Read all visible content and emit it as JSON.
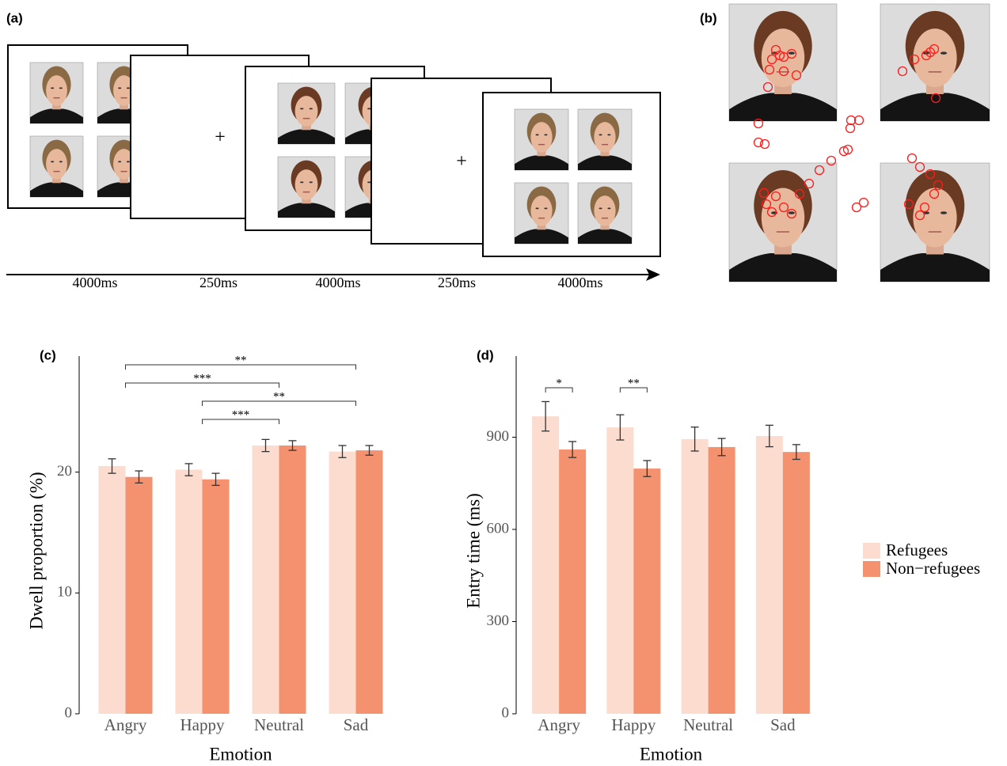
{
  "panel_a": {
    "label": "(a)",
    "fixation": "+",
    "durations": [
      "4000ms",
      "250ms",
      "4000ms",
      "250ms",
      "4000ms"
    ]
  },
  "panel_b": {
    "label": "(b)"
  },
  "chart_data": [
    {
      "type": "bar",
      "panel_label": "(c)",
      "y_label": "Dwell proportion (%)",
      "x_label": "Emotion",
      "categories": [
        "Angry",
        "Happy",
        "Neutral",
        "Sad"
      ],
      "series": [
        {
          "color": "#fbdccf",
          "values": [
            20.5,
            20.2,
            22.2,
            21.7
          ],
          "errors": [
            0.6,
            0.5,
            0.5,
            0.5
          ]
        },
        {
          "color": "#f4916f",
          "values": [
            19.6,
            19.4,
            22.2,
            21.8
          ],
          "errors": [
            0.5,
            0.5,
            0.4,
            0.4
          ]
        }
      ],
      "ylim": [
        0,
        29.6
      ],
      "yticks": [
        0,
        10,
        20
      ],
      "annotations": [
        {
          "label": "**",
          "from": "Angry",
          "to": "Sad"
        },
        {
          "label": "***",
          "from": "Angry",
          "to": "Neutral"
        },
        {
          "label": "**",
          "from": "Happy",
          "to": "Sad"
        },
        {
          "label": "***",
          "from": "Happy",
          "to": "Neutral"
        }
      ]
    },
    {
      "type": "bar",
      "panel_label": "(d)",
      "y_label": "Entry time (ms)",
      "x_label": "Emotion",
      "categories": [
        "Angry",
        "Happy",
        "Neutral",
        "Sad"
      ],
      "series": [
        {
          "name": "Refugees",
          "color": "#fbdccf",
          "values": [
            968,
            932,
            894,
            904
          ],
          "errors": [
            48,
            41,
            39,
            35
          ]
        },
        {
          "name": "Non−refugees",
          "color": "#f4916f",
          "values": [
            860,
            798,
            868,
            852
          ],
          "errors": [
            26,
            26,
            28,
            24
          ]
        }
      ],
      "ylim": [
        0,
        1164
      ],
      "yticks": [
        0,
        300,
        600,
        900
      ],
      "legend": "right",
      "annotations": [
        {
          "label": "*",
          "category": "Angry"
        },
        {
          "label": "**",
          "category": "Happy"
        }
      ]
    }
  ]
}
